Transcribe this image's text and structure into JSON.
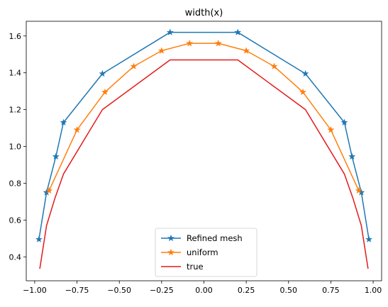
{
  "chart_data": {
    "type": "line",
    "title": "width(x)",
    "xlabel": "",
    "ylabel": "",
    "xlim": [
      -1.05,
      1.05
    ],
    "ylim": [
      0.27,
      1.68
    ],
    "xticks": [
      -1.0,
      -0.75,
      -0.5,
      -0.25,
      0.0,
      0.25,
      0.5,
      0.75,
      1.0
    ],
    "xtick_labels": [
      "−1.00",
      "−0.75",
      "−0.50",
      "−0.25",
      "0.00",
      "0.25",
      "0.50",
      "0.75",
      "1.00"
    ],
    "yticks": [
      0.4,
      0.6,
      0.8,
      1.0,
      1.2,
      1.4,
      1.6
    ],
    "ytick_labels": [
      "0.4",
      "0.6",
      "0.8",
      "1.0",
      "1.2",
      "1.4",
      "1.6"
    ],
    "grid": false,
    "legend_position": "bottom-center",
    "series": [
      {
        "name": "Refined mesh",
        "color": "#1f77b4",
        "marker": "star",
        "x": [
          -0.975,
          -0.93,
          -0.875,
          -0.83,
          -0.6,
          -0.2,
          0.2,
          0.6,
          0.83,
          0.875,
          0.93,
          0.975
        ],
        "y": [
          0.495,
          0.75,
          0.945,
          1.13,
          1.395,
          1.62,
          1.62,
          1.395,
          1.13,
          0.945,
          0.75,
          0.495
        ]
      },
      {
        "name": "uniform",
        "color": "#ff7f0e",
        "marker": "star",
        "x": [
          -0.915,
          -0.75,
          -0.585,
          -0.415,
          -0.25,
          -0.085,
          0.085,
          0.25,
          0.415,
          0.585,
          0.75,
          0.915
        ],
        "y": [
          0.76,
          1.09,
          1.295,
          1.435,
          1.52,
          1.56,
          1.56,
          1.52,
          1.435,
          1.295,
          1.09,
          0.76
        ]
      },
      {
        "name": "true",
        "color": "#e41a1c",
        "marker": "none",
        "x": [
          -0.97,
          -0.93,
          -0.88,
          -0.83,
          -0.6,
          -0.2,
          0.2,
          0.6,
          0.83,
          0.88,
          0.93,
          0.97
        ],
        "y": [
          0.335,
          0.57,
          0.72,
          0.85,
          1.2,
          1.47,
          1.47,
          1.2,
          0.85,
          0.72,
          0.57,
          0.335
        ]
      }
    ]
  }
}
